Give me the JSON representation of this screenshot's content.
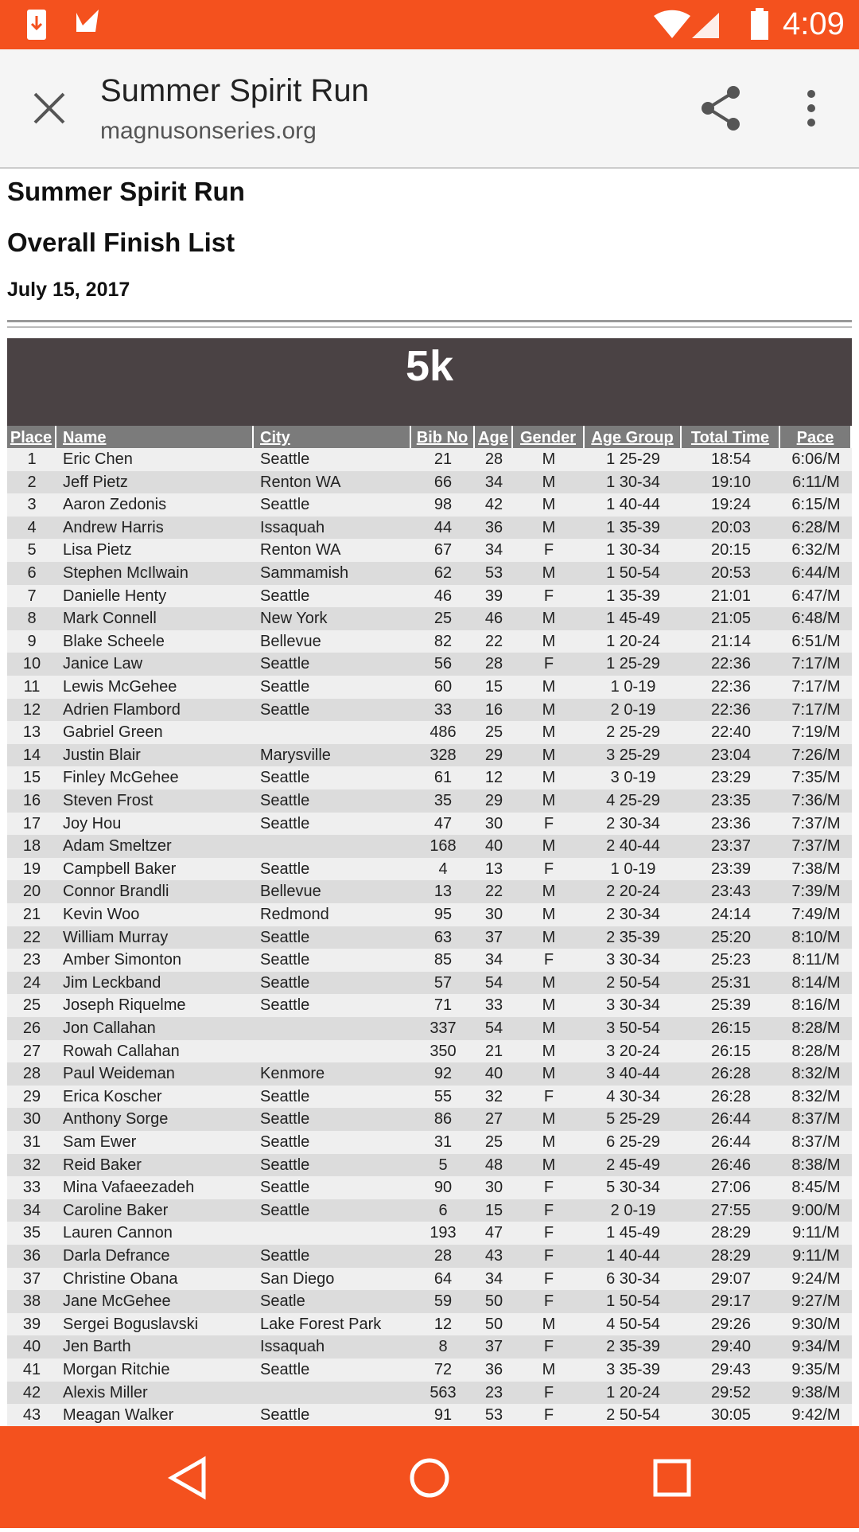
{
  "status_bar": {
    "time": "4:09"
  },
  "toolbar": {
    "title": "Summer Spirit Run",
    "url": "magnusonseries.org"
  },
  "page": {
    "title": "Summer Spirit Run",
    "subtitle": "Overall Finish List",
    "date": "July 15, 2017"
  },
  "table": {
    "caption": "5k",
    "columns": [
      "Place",
      "Name",
      "City",
      "Bib No",
      "Age",
      "Gender",
      "Age Group",
      "Total Time",
      "Pace"
    ],
    "rows": [
      [
        1,
        "Eric Chen",
        "Seattle",
        21,
        28,
        "M",
        "1 25-29",
        "18:54",
        "6:06/M"
      ],
      [
        2,
        "Jeff Pietz",
        "Renton WA",
        66,
        34,
        "M",
        "1 30-34",
        "19:10",
        "6:11/M"
      ],
      [
        3,
        "Aaron Zedonis",
        "Seattle",
        98,
        42,
        "M",
        "1 40-44",
        "19:24",
        "6:15/M"
      ],
      [
        4,
        "Andrew Harris",
        "Issaquah",
        44,
        36,
        "M",
        "1 35-39",
        "20:03",
        "6:28/M"
      ],
      [
        5,
        "Lisa Pietz",
        "Renton WA",
        67,
        34,
        "F",
        "1 30-34",
        "20:15",
        "6:32/M"
      ],
      [
        6,
        "Stephen McIlwain",
        "Sammamish",
        62,
        53,
        "M",
        "1 50-54",
        "20:53",
        "6:44/M"
      ],
      [
        7,
        "Danielle Henty",
        "Seattle",
        46,
        39,
        "F",
        "1 35-39",
        "21:01",
        "6:47/M"
      ],
      [
        8,
        "Mark Connell",
        "New York",
        25,
        46,
        "M",
        "1 45-49",
        "21:05",
        "6:48/M"
      ],
      [
        9,
        "Blake Scheele",
        "Bellevue",
        82,
        22,
        "M",
        "1 20-24",
        "21:14",
        "6:51/M"
      ],
      [
        10,
        "Janice Law",
        "Seattle",
        56,
        28,
        "F",
        "1 25-29",
        "22:36",
        "7:17/M"
      ],
      [
        11,
        "Lewis McGehee",
        "Seattle",
        60,
        15,
        "M",
        "1 0-19",
        "22:36",
        "7:17/M"
      ],
      [
        12,
        "Adrien Flambord",
        "Seattle",
        33,
        16,
        "M",
        "2 0-19",
        "22:36",
        "7:17/M"
      ],
      [
        13,
        "Gabriel Green",
        null,
        486,
        25,
        "M",
        "2 25-29",
        "22:40",
        "7:19/M"
      ],
      [
        14,
        "Justin Blair",
        "Marysville",
        328,
        29,
        "M",
        "3 25-29",
        "23:04",
        "7:26/M"
      ],
      [
        15,
        "Finley McGehee",
        "Seattle",
        61,
        12,
        "M",
        "3 0-19",
        "23:29",
        "7:35/M"
      ],
      [
        16,
        "Steven Frost",
        "Seattle",
        35,
        29,
        "M",
        "4 25-29",
        "23:35",
        "7:36/M"
      ],
      [
        17,
        "Joy Hou",
        "Seattle",
        47,
        30,
        "F",
        "2 30-34",
        "23:36",
        "7:37/M"
      ],
      [
        18,
        "Adam Smeltzer",
        null,
        168,
        40,
        "M",
        "2 40-44",
        "23:37",
        "7:37/M"
      ],
      [
        19,
        "Campbell Baker",
        "Seattle",
        4,
        13,
        "F",
        "1 0-19",
        "23:39",
        "7:38/M"
      ],
      [
        20,
        "Connor Brandli",
        "Bellevue",
        13,
        22,
        "M",
        "2 20-24",
        "23:43",
        "7:39/M"
      ],
      [
        21,
        "Kevin Woo",
        "Redmond",
        95,
        30,
        "M",
        "2 30-34",
        "24:14",
        "7:49/M"
      ],
      [
        22,
        "William Murray",
        "Seattle",
        63,
        37,
        "M",
        "2 35-39",
        "25:20",
        "8:10/M"
      ],
      [
        23,
        "Amber Simonton",
        "Seattle",
        85,
        34,
        "F",
        "3 30-34",
        "25:23",
        "8:11/M"
      ],
      [
        24,
        "Jim Leckband",
        "Seattle",
        57,
        54,
        "M",
        "2 50-54",
        "25:31",
        "8:14/M"
      ],
      [
        25,
        "Joseph Riquelme",
        "Seattle",
        71,
        33,
        "M",
        "3 30-34",
        "25:39",
        "8:16/M"
      ],
      [
        26,
        "Jon Callahan",
        null,
        337,
        54,
        "M",
        "3 50-54",
        "26:15",
        "8:28/M"
      ],
      [
        27,
        "Rowah Callahan",
        null,
        350,
        21,
        "M",
        "3 20-24",
        "26:15",
        "8:28/M"
      ],
      [
        28,
        "Paul Weideman",
        "Kenmore",
        92,
        40,
        "M",
        "3 40-44",
        "26:28",
        "8:32/M"
      ],
      [
        29,
        "Erica Koscher",
        "Seattle",
        55,
        32,
        "F",
        "4 30-34",
        "26:28",
        "8:32/M"
      ],
      [
        30,
        "Anthony Sorge",
        "Seattle",
        86,
        27,
        "M",
        "5 25-29",
        "26:44",
        "8:37/M"
      ],
      [
        31,
        "Sam Ewer",
        "Seattle",
        31,
        25,
        "M",
        "6 25-29",
        "26:44",
        "8:37/M"
      ],
      [
        32,
        "Reid Baker",
        "Seattle",
        5,
        48,
        "M",
        "2 45-49",
        "26:46",
        "8:38/M"
      ],
      [
        33,
        "Mina Vafaeezadeh",
        "Seattle",
        90,
        30,
        "F",
        "5 30-34",
        "27:06",
        "8:45/M"
      ],
      [
        34,
        "Caroline Baker",
        "Seattle",
        6,
        15,
        "F",
        "2 0-19",
        "27:55",
        "9:00/M"
      ],
      [
        35,
        "Lauren Cannon",
        null,
        193,
        47,
        "F",
        "1 45-49",
        "28:29",
        "9:11/M"
      ],
      [
        36,
        "Darla Defrance",
        "Seattle",
        28,
        43,
        "F",
        "1 40-44",
        "28:29",
        "9:11/M"
      ],
      [
        37,
        "Christine Obana",
        "San Diego",
        64,
        34,
        "F",
        "6 30-34",
        "29:07",
        "9:24/M"
      ],
      [
        38,
        "Jane McGehee",
        "Seatle",
        59,
        50,
        "F",
        "1 50-54",
        "29:17",
        "9:27/M"
      ],
      [
        39,
        "Sergei Boguslavski",
        "Lake Forest Park",
        12,
        50,
        "M",
        "4 50-54",
        "29:26",
        "9:30/M"
      ],
      [
        40,
        "Jen Barth",
        "Issaquah",
        8,
        37,
        "F",
        "2 35-39",
        "29:40",
        "9:34/M"
      ],
      [
        41,
        "Morgan Ritchie",
        "Seattle",
        72,
        36,
        "M",
        "3 35-39",
        "29:43",
        "9:35/M"
      ],
      [
        42,
        "Alexis Miller",
        null,
        563,
        23,
        "F",
        "1 20-24",
        "29:52",
        "9:38/M"
      ],
      [
        43,
        "Meagan Walker",
        "Seattle",
        91,
        53,
        "F",
        "2 50-54",
        "30:05",
        "9:42/M"
      ]
    ]
  }
}
